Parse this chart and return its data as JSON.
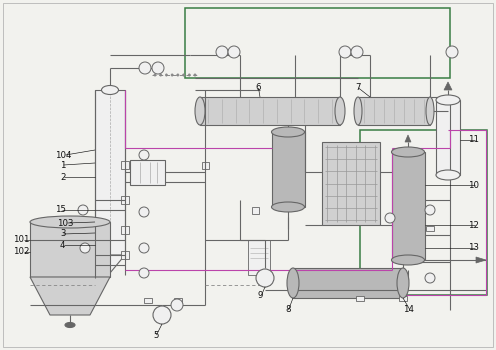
{
  "bg_color": "#f2f2ee",
  "line_color": "#666666",
  "green_color": "#3a7d44",
  "magenta_color": "#bb44aa",
  "dashed_color": "#888888",
  "fill_gray": "#b8b8b8",
  "fill_light": "#d0d0d0",
  "fill_white": "#f0f0f0",
  "border_color": "#aaaaaa"
}
